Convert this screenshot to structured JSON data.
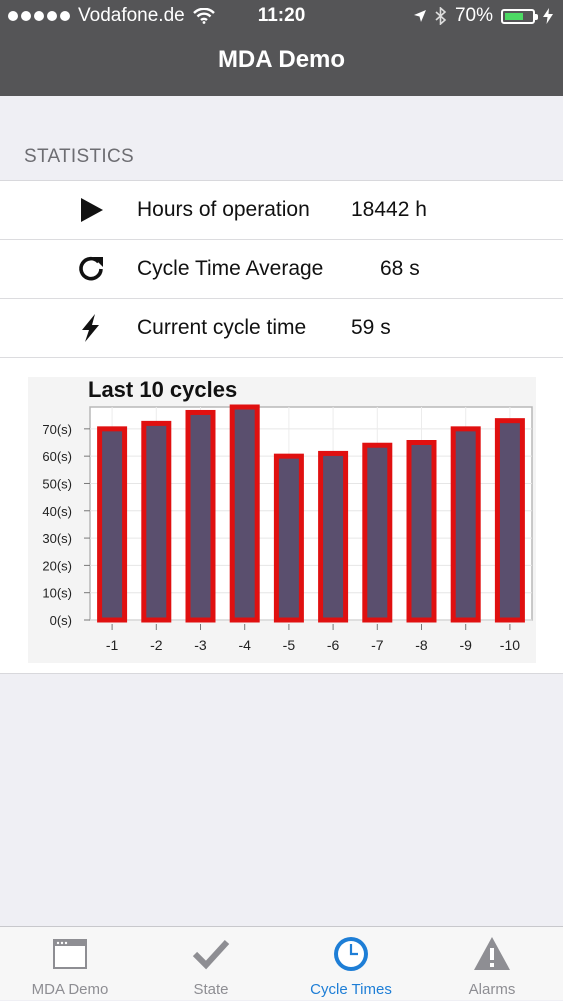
{
  "status_bar": {
    "carrier": "Vodafone.de",
    "time": "11:20",
    "battery_percent": "70%",
    "battery_level": 0.7,
    "icons": [
      "signal-dots-icon",
      "wifi-icon",
      "location-arrow-icon",
      "bluetooth-icon",
      "battery-icon",
      "charging-bolt-icon"
    ]
  },
  "nav": {
    "title": "MDA Demo"
  },
  "section": {
    "header": "STATISTICS"
  },
  "stats": [
    {
      "icon": "play-icon",
      "label": "Hours of operation",
      "value": "18442 h"
    },
    {
      "icon": "refresh-icon",
      "label": "Cycle Time Average",
      "value": "68 s"
    },
    {
      "icon": "bolt-icon",
      "label": "Current cycle time",
      "value": "59 s"
    }
  ],
  "chart_data": {
    "type": "bar",
    "title": "Last 10 cycles",
    "categories": [
      "-1",
      "-2",
      "-3",
      "-4",
      "-5",
      "-6",
      "-7",
      "-8",
      "-9",
      "-10"
    ],
    "values": [
      70,
      72,
      76,
      78,
      60,
      61,
      64,
      65,
      70,
      73
    ],
    "ylim": [
      0,
      78
    ],
    "yticks": [
      0,
      10,
      20,
      30,
      40,
      50,
      60,
      70
    ],
    "ytick_labels": [
      "0(s)",
      "10(s)",
      "20(s)",
      "30(s)",
      "40(s)",
      "50(s)",
      "60(s)",
      "70(s)"
    ],
    "grid": true,
    "bar_color": "#5a4f6e",
    "bar_border_color": "#e01010"
  },
  "tabbar": {
    "items": [
      {
        "label": "MDA Demo",
        "icon": "window-icon",
        "active": false
      },
      {
        "label": "State",
        "icon": "checkmark-icon",
        "active": false
      },
      {
        "label": "Cycle Times",
        "icon": "clock-icon",
        "active": true
      },
      {
        "label": "Alarms",
        "icon": "warning-icon",
        "active": false
      }
    ],
    "active_color": "#1e7ed6",
    "inactive_color": "#8e8e93"
  }
}
